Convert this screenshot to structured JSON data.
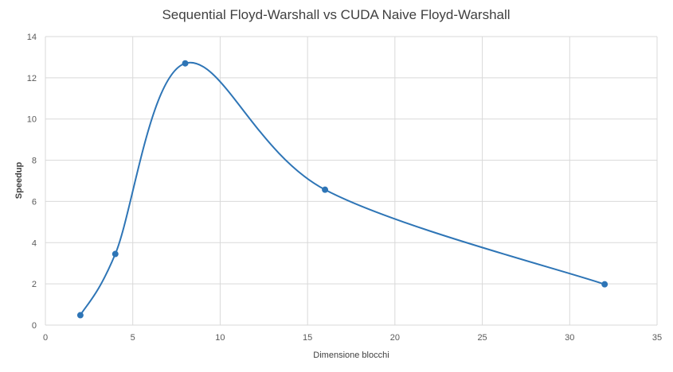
{
  "chart_data": {
    "type": "scatter",
    "title": "Sequential Floyd-Warshall vs CUDA Naive Floyd-Warshall",
    "xlabel": "Dimensione blocchi",
    "ylabel": "Speedup",
    "xlim": [
      0,
      35
    ],
    "ylim": [
      0,
      14
    ],
    "xticks": [
      0,
      5,
      10,
      15,
      20,
      25,
      30,
      35
    ],
    "yticks": [
      0,
      2,
      4,
      6,
      8,
      10,
      12,
      14
    ],
    "grid": true,
    "smooth": true,
    "legend": "none",
    "series": [
      {
        "color": "#2e75b6",
        "x": [
          2,
          4,
          8,
          16,
          32
        ],
        "y": [
          0.48,
          3.45,
          12.7,
          6.57,
          1.98
        ]
      }
    ]
  }
}
